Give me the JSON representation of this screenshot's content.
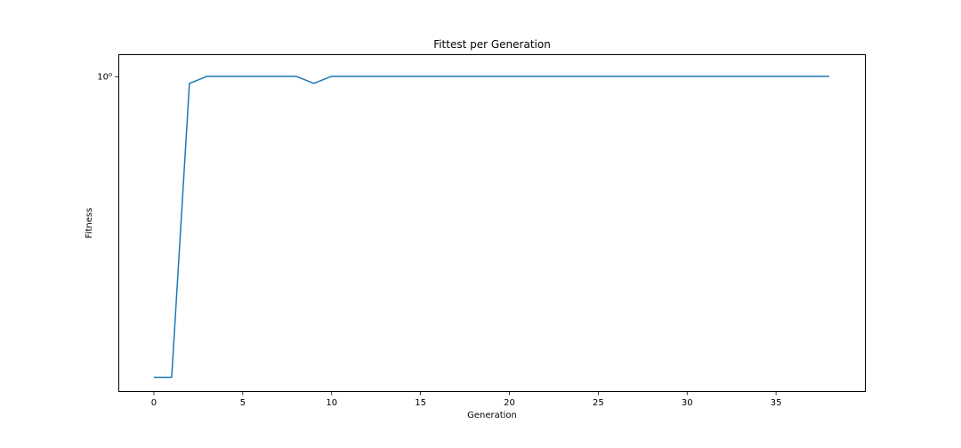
{
  "chart_data": {
    "type": "line",
    "title": "Fittest per Generation",
    "xlabel": "Generation",
    "ylabel": "Fitness",
    "x_ticks": [
      0,
      5,
      10,
      15,
      20,
      25,
      30,
      35
    ],
    "x_tick_labels": [
      "0",
      "5",
      "10",
      "15",
      "20",
      "25",
      "30",
      "35"
    ],
    "y_tick_label": "10⁰",
    "y_tick_value": 1,
    "y_scale": "log",
    "xlim": [
      -2,
      40
    ],
    "ylim": [
      0.965,
      1.0025
    ],
    "grid": false,
    "legend": "none",
    "series": [
      {
        "color": "#1f77b4",
        "x": [
          0,
          1,
          2,
          3,
          4,
          5,
          6,
          7,
          8,
          9,
          10,
          11,
          12,
          13,
          14,
          15,
          16,
          17,
          18,
          19,
          20,
          21,
          22,
          23,
          24,
          25,
          26,
          27,
          28,
          29,
          30,
          31,
          32,
          33,
          34,
          35,
          36,
          37,
          38
        ],
        "y": [
          0.9665,
          0.9665,
          0.9992,
          1,
          1,
          1,
          1,
          1,
          1,
          0.9992,
          1,
          1,
          1,
          1,
          1,
          1,
          1,
          1,
          1,
          1,
          1,
          1,
          1,
          1,
          1,
          1,
          1,
          1,
          1,
          1,
          1,
          1,
          1,
          1,
          1,
          1,
          1,
          1,
          1
        ]
      }
    ]
  }
}
